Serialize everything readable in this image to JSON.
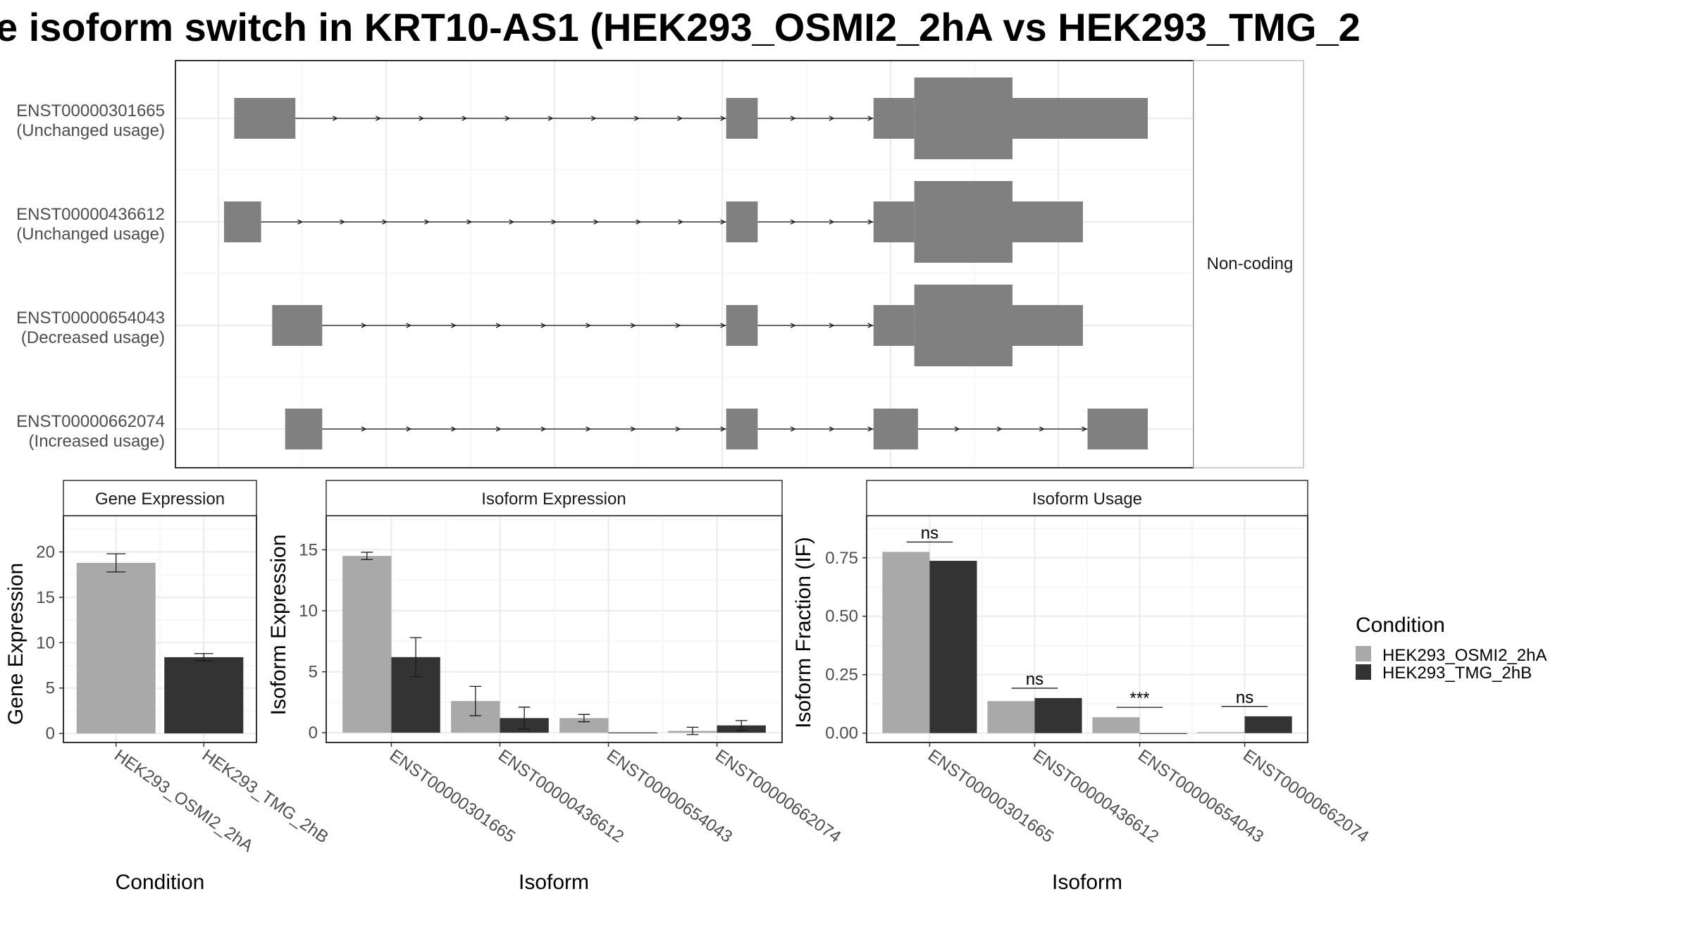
{
  "title": "e isoform switch in KRT10-AS1 (HEK293_OSMI2_2hA vs HEK293_TMG_2",
  "colors": {
    "condition_a": "#A9A9A9",
    "condition_b": "#333333",
    "exon": "#808080",
    "grid": "#EBEBEB",
    "panel_border": "#333333"
  },
  "legend": {
    "title": "Condition",
    "placement": "right",
    "items": [
      {
        "label": "HEK293_OSMI2_2hA",
        "color": "#A9A9A9"
      },
      {
        "label": "HEK293_TMG_2hB",
        "color": "#333333"
      }
    ]
  },
  "structure": {
    "facet_label": "Non-coding",
    "genomic_range": [
      0,
      1000
    ],
    "isoforms": [
      {
        "id": "ENST00000301665",
        "status": "(Unchanged usage)",
        "exons": [
          [
            14,
            80,
            "u"
          ],
          [
            545,
            579,
            "u"
          ],
          [
            704,
            748,
            "u"
          ],
          [
            748,
            854,
            "c"
          ],
          [
            854,
            1000,
            "u"
          ]
        ]
      },
      {
        "id": "ENST00000436612",
        "status": "(Unchanged usage)",
        "exons": [
          [
            3,
            43,
            "u"
          ],
          [
            545,
            579,
            "u"
          ],
          [
            704,
            748,
            "u"
          ],
          [
            748,
            854,
            "c"
          ],
          [
            854,
            930,
            "u"
          ]
        ]
      },
      {
        "id": "ENST00000654043",
        "status": "(Decreased usage)",
        "exons": [
          [
            55,
            109,
            "u"
          ],
          [
            545,
            579,
            "u"
          ],
          [
            704,
            748,
            "u"
          ],
          [
            748,
            854,
            "c"
          ],
          [
            854,
            930,
            "u"
          ]
        ]
      },
      {
        "id": "ENST00000662074",
        "status": "(Increased usage)",
        "exons": [
          [
            69,
            109,
            "u"
          ],
          [
            545,
            579,
            "u"
          ],
          [
            704,
            752,
            "u"
          ],
          [
            935,
            1000,
            "u"
          ]
        ]
      }
    ]
  },
  "chart_data": [
    {
      "type": "bar",
      "title": "Gene Expression",
      "xlabel": "Condition",
      "ylabel": "Gene Expression",
      "ylim": [
        -1,
        24
      ],
      "yticks": [
        0,
        5,
        10,
        15,
        20
      ],
      "categories": [
        "HEK293_OSMI2_2hA",
        "HEK293_TMG_2hB"
      ],
      "series": [
        {
          "name": "HEK293_OSMI2_2hA",
          "values": [
            18.8,
            null
          ],
          "err": [
            1.0,
            null
          ]
        },
        {
          "name": "HEK293_TMG_2hB",
          "values": [
            null,
            8.4
          ],
          "err": [
            null,
            0.4
          ]
        }
      ]
    },
    {
      "type": "bar",
      "title": "Isoform Expression",
      "xlabel": "Isoform",
      "ylabel": "Isoform Expression",
      "ylim": [
        -0.8,
        17.8
      ],
      "yticks": [
        0,
        5,
        10,
        15
      ],
      "categories": [
        "ENST00000301665",
        "ENST00000436612",
        "ENST00000654043",
        "ENST00000662074"
      ],
      "series": [
        {
          "name": "HEK293_OSMI2_2hA",
          "values": [
            14.5,
            2.6,
            1.2,
            0.15
          ],
          "err": [
            0.3,
            1.2,
            0.3,
            0.3
          ]
        },
        {
          "name": "HEK293_TMG_2hB",
          "values": [
            6.2,
            1.2,
            0.02,
            0.6
          ],
          "err": [
            1.6,
            0.9,
            0.0,
            0.4
          ]
        }
      ]
    },
    {
      "type": "bar",
      "title": "Isoform Usage",
      "xlabel": "Isoform",
      "ylabel": "Isoform Fraction (IF)",
      "ylim": [
        -0.04,
        0.93
      ],
      "yticks": [
        0.0,
        0.25,
        0.5,
        0.75
      ],
      "ytick_labels": [
        "0.00",
        "0.25",
        "0.50",
        "0.75"
      ],
      "categories": [
        "ENST00000301665",
        "ENST00000436612",
        "ENST00000654043",
        "ENST00000662074"
      ],
      "series": [
        {
          "name": "HEK293_OSMI2_2hA",
          "values": [
            0.775,
            0.137,
            0.068,
            0.004
          ]
        },
        {
          "name": "HEK293_TMG_2hB",
          "values": [
            0.737,
            0.15,
            0.0,
            0.072
          ]
        }
      ],
      "significance": [
        "ns",
        "ns",
        "***",
        "ns"
      ]
    }
  ]
}
